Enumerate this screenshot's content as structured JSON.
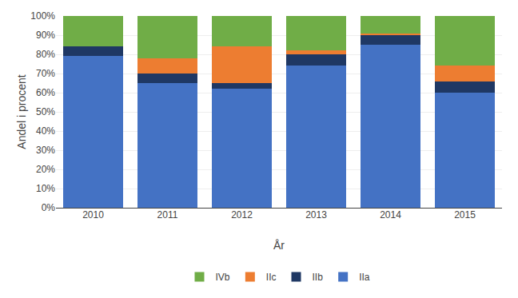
{
  "chart_data": {
    "type": "bar",
    "stacked": true,
    "categories": [
      "2010",
      "2011",
      "2012",
      "2013",
      "2014",
      "2015"
    ],
    "series": [
      {
        "name": "IIa",
        "color": "#4472C4",
        "values": [
          79,
          65,
          62,
          74,
          85,
          60
        ]
      },
      {
        "name": "IIb",
        "color": "#1F3864",
        "values": [
          5,
          5,
          3,
          6,
          5,
          6
        ]
      },
      {
        "name": "IIc",
        "color": "#ED7D31",
        "values": [
          0,
          8,
          19,
          2,
          1,
          8
        ]
      },
      {
        "name": "IVb",
        "color": "#70AD47",
        "values": [
          16,
          22,
          16,
          18,
          9,
          26
        ]
      }
    ],
    "xlabel": "År",
    "ylabel": "Andel i procent",
    "ylim": [
      0,
      100
    ],
    "yticks": [
      {
        "value": 0,
        "label": "0%"
      },
      {
        "value": 10,
        "label": "10%"
      },
      {
        "value": 20,
        "label": "20%"
      },
      {
        "value": 30,
        "label": "30%"
      },
      {
        "value": 40,
        "label": "40%"
      },
      {
        "value": 50,
        "label": "50%"
      },
      {
        "value": 60,
        "label": "60%"
      },
      {
        "value": 70,
        "label": "70%"
      },
      {
        "value": 80,
        "label": "80%"
      },
      {
        "value": 90,
        "label": "90%"
      },
      {
        "value": 100,
        "label": "100%"
      }
    ],
    "grid": true,
    "legend": "bottom"
  }
}
